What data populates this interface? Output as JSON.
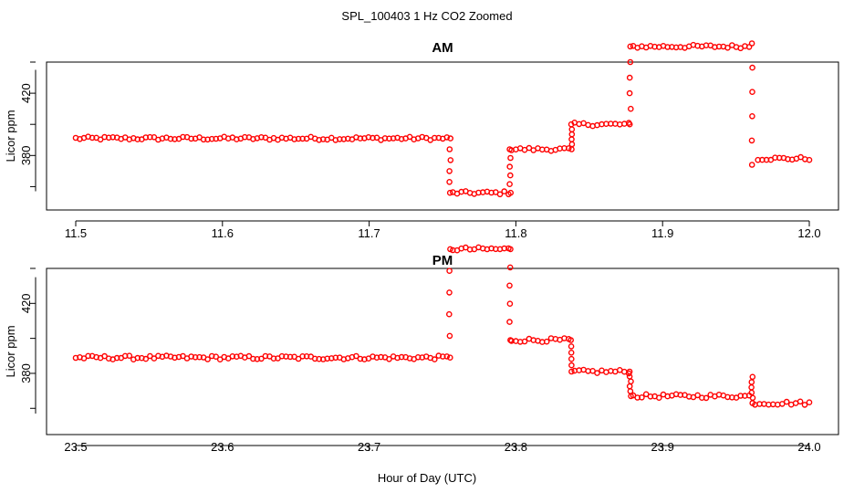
{
  "figure": {
    "title": "SPL_100403 1 Hz CO2 Zoomed",
    "xlabel": "Hour of Day (UTC)",
    "marker_color": "#ff0000"
  },
  "chart_data": [
    {
      "type": "scatter",
      "title": "AM",
      "xlabel": "Hour of Day (UTC)",
      "ylabel": "Licor ppm",
      "xlim": [
        11.5,
        12.0
      ],
      "ylim": [
        345,
        440
      ],
      "xticks": [
        "11.5",
        "11.6",
        "11.7",
        "11.8",
        "11.9",
        "12.0"
      ],
      "xtick_values": [
        11.5,
        11.6,
        11.7,
        11.8,
        11.9,
        12.0
      ],
      "yticks": [
        "380",
        "420"
      ],
      "ytick_values": [
        380,
        420
      ],
      "grid": false,
      "legend": "none",
      "marker": "open-circle",
      "color": "#ff0000",
      "segments": [
        {
          "x": [
            11.5,
            11.753
          ],
          "y": 391
        },
        {
          "x": [
            11.757,
            11.795
          ],
          "y": 356
        },
        {
          "x": [
            11.797,
            11.836
          ],
          "y": 384
        },
        {
          "x": [
            11.84,
            11.877
          ],
          "y": 400
        },
        {
          "x": [
            11.88,
            11.959
          ],
          "y": 450
        },
        {
          "x": [
            11.965,
            12.0
          ],
          "y": 378
        }
      ],
      "transitions": [
        {
          "x": 11.755,
          "y": [
            391,
            356
          ]
        },
        {
          "x": 11.796,
          "y": [
            356,
            384
          ]
        },
        {
          "x": 11.838,
          "y": [
            384,
            400
          ]
        },
        {
          "x": 11.878,
          "y": [
            400,
            450
          ]
        },
        {
          "x": 11.961,
          "y": [
            452,
            374
          ]
        }
      ]
    },
    {
      "type": "scatter",
      "title": "PM",
      "xlabel": "Hour of Day (UTC)",
      "ylabel": "Licor ppm",
      "xlim": [
        23.5,
        24.0
      ],
      "ylim": [
        345,
        440
      ],
      "xticks": [
        "23.5",
        "23.6",
        "23.7",
        "23.8",
        "23.9",
        "24.0"
      ],
      "xtick_values": [
        23.5,
        23.6,
        23.7,
        23.8,
        23.9,
        24.0
      ],
      "yticks": [
        "380",
        "420"
      ],
      "ytick_values": [
        380,
        420
      ],
      "grid": false,
      "legend": "none",
      "marker": "open-circle",
      "color": "#ff0000",
      "segments": [
        {
          "x": [
            23.5,
            23.753
          ],
          "y": 389
        },
        {
          "x": [
            23.757,
            23.795
          ],
          "y": 451
        },
        {
          "x": [
            23.797,
            23.836
          ],
          "y": 399
        },
        {
          "x": [
            23.84,
            23.877
          ],
          "y": 381
        },
        {
          "x": [
            23.88,
            23.959
          ],
          "y": 367
        },
        {
          "x": [
            23.963,
            24.0
          ],
          "y": 363
        }
      ],
      "transitions": [
        {
          "x": 23.755,
          "y": [
            389,
            451
          ]
        },
        {
          "x": 23.796,
          "y": [
            451,
            399
          ]
        },
        {
          "x": 23.838,
          "y": [
            399,
            381
          ]
        },
        {
          "x": 23.878,
          "y": [
            381,
            367
          ]
        },
        {
          "x": 23.961,
          "y": [
            378,
            363
          ]
        }
      ]
    }
  ]
}
